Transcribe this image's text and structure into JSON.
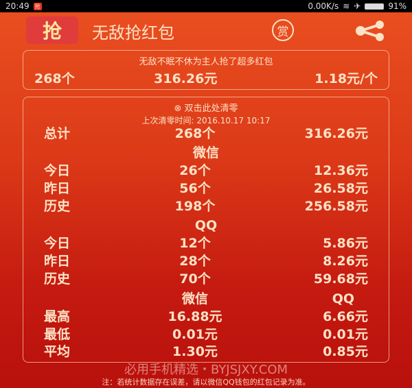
{
  "status_bar": {
    "time": "20:49",
    "app_badge": "抢",
    "net_speed": "0.00K/s",
    "battery": "91%",
    "icons": [
      "wifi-icon",
      "airplane-icon",
      "battery-icon"
    ]
  },
  "header": {
    "logo_text": "抢",
    "title": "无敌抢红包",
    "reward_label": "赏",
    "share_icon": "share-icon"
  },
  "summary": {
    "caption": "无敌不眠不休为主人抢了超多红包",
    "count": "268个",
    "amount": "316.26元",
    "average": "1.18元/个"
  },
  "stats": {
    "clear_label": "双击此处清零",
    "last_clear": "上次清零时间: 2016.10.17 10:17",
    "total": {
      "label": "总计",
      "count": "268个",
      "amount": "316.26元"
    },
    "wechat_title": "微信",
    "wechat": [
      {
        "label": "今日",
        "count": "26个",
        "amount": "12.36元"
      },
      {
        "label": "昨日",
        "count": "56个",
        "amount": "26.58元"
      },
      {
        "label": "历史",
        "count": "198个",
        "amount": "256.58元"
      }
    ],
    "qq_title": "QQ",
    "qq": [
      {
        "label": "今日",
        "count": "12个",
        "amount": "5.86元"
      },
      {
        "label": "昨日",
        "count": "28个",
        "amount": "8.26元"
      },
      {
        "label": "历史",
        "count": "70个",
        "amount": "59.68元"
      }
    ],
    "compare_headers": [
      "微信",
      "QQ"
    ],
    "compare": [
      {
        "label": "最高",
        "wechat": "16.88元",
        "qq": "6.66元"
      },
      {
        "label": "最低",
        "wechat": "0.01元",
        "qq": "0.01元"
      },
      {
        "label": "平均",
        "wechat": "1.30元",
        "qq": "0.85元"
      }
    ]
  },
  "watermark": "必用手机精选・BYJSJXY.COM",
  "note": "注：若统计数据存在误差，请以微信QQ钱包的红包记录为准。"
}
